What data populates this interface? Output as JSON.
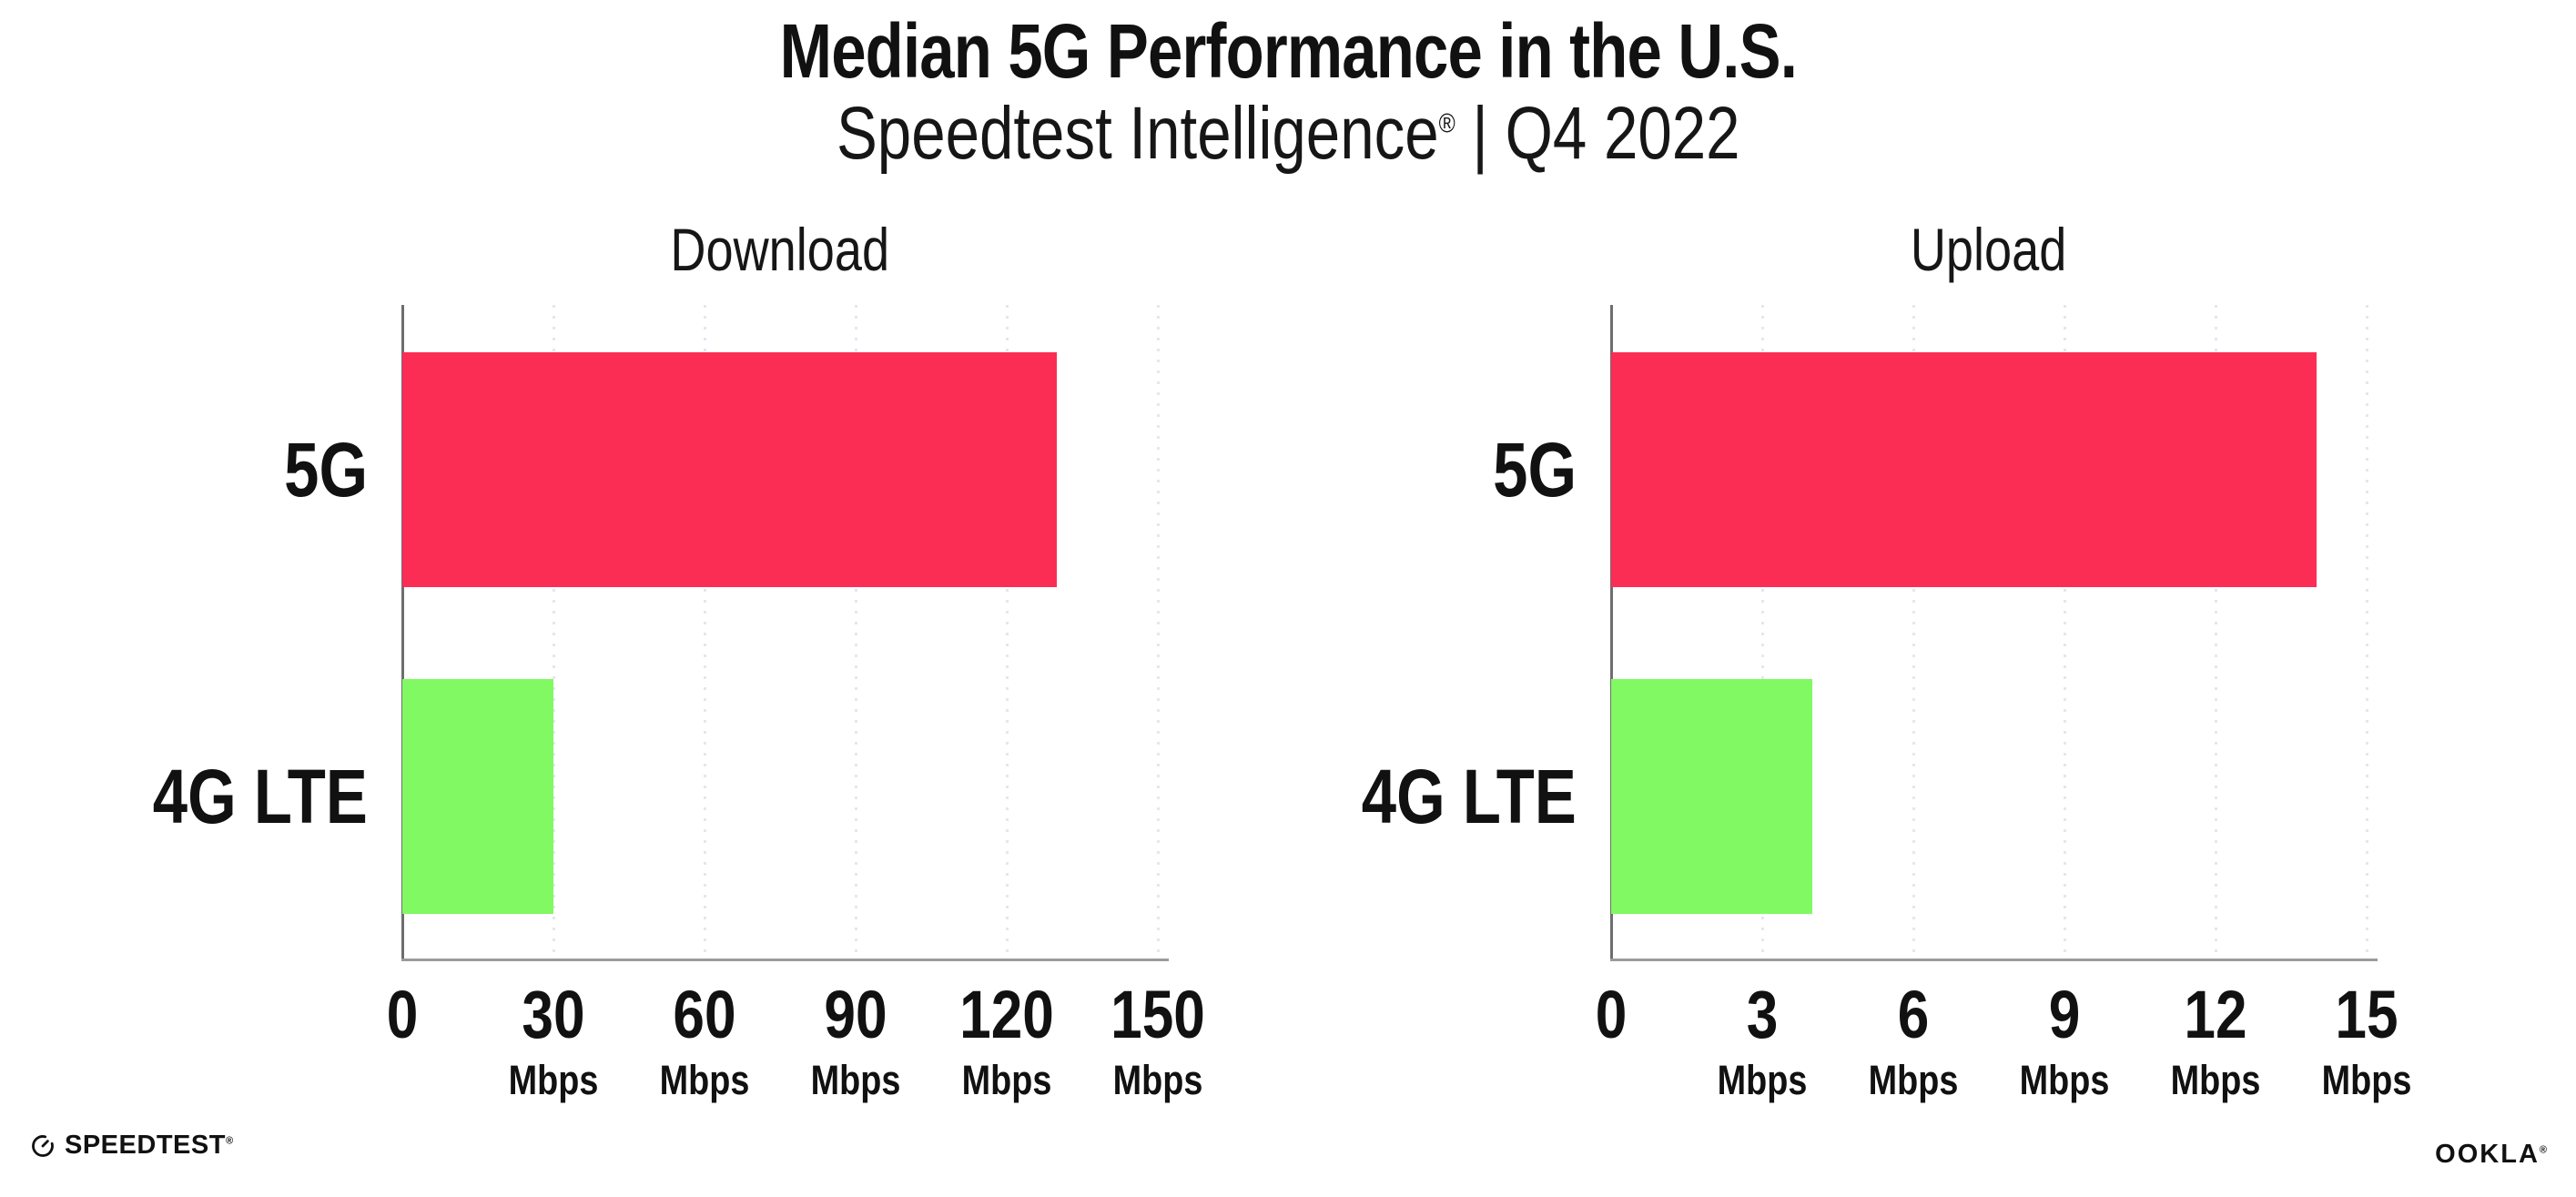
{
  "header": {
    "title": "Median 5G Performance in the U.S.",
    "subtitle_brand": "Speedtest Intelligence",
    "subtitle_reg": "®",
    "subtitle_rest": " | Q4 2022"
  },
  "chart_data": [
    {
      "type": "bar",
      "orientation": "horizontal",
      "title": "Download",
      "categories": [
        "5G",
        "4G LTE"
      ],
      "values": [
        130,
        30
      ],
      "unit": "Mbps",
      "xlim": [
        0,
        150
      ],
      "xticks": [
        0,
        30,
        60,
        90,
        120,
        150
      ],
      "grid": true,
      "legend": false
    },
    {
      "type": "bar",
      "orientation": "horizontal",
      "title": "Upload",
      "categories": [
        "5G",
        "4G LTE"
      ],
      "values": [
        14,
        4
      ],
      "unit": "Mbps",
      "xlim": [
        0,
        15
      ],
      "xticks": [
        0,
        3,
        6,
        9,
        12,
        15
      ],
      "grid": true,
      "legend": false
    }
  ],
  "colors": {
    "bar_5g": "#fc2d55",
    "bar_4g": "#81f963",
    "grid": "#e6e6f0",
    "axis_x": "#9b9b9b",
    "axis_y": "#6e6e6e",
    "text": "#111111"
  },
  "footer": {
    "speedtest_label": "SPEEDTEST",
    "speedtest_reg": "®",
    "ookla_label": "OOKLA",
    "ookla_reg": "®"
  }
}
